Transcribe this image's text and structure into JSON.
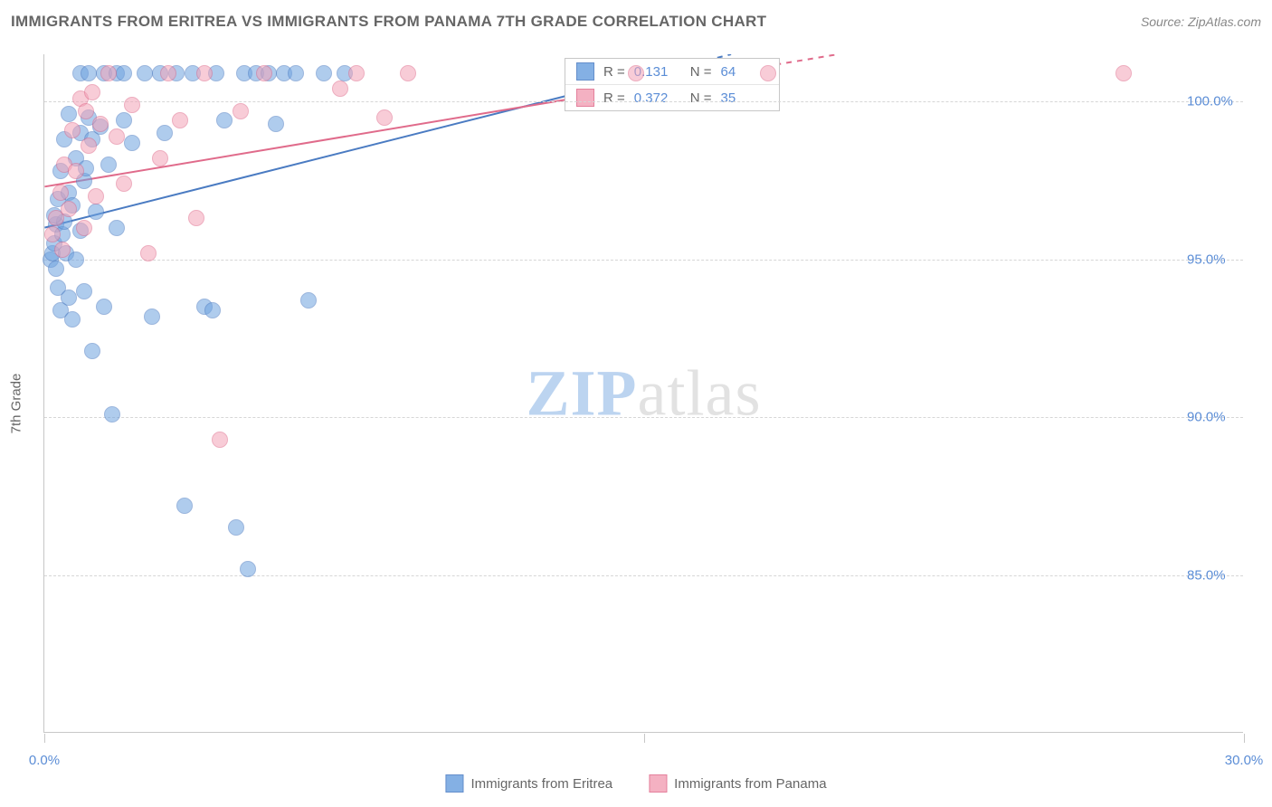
{
  "title": "IMMIGRANTS FROM ERITREA VS IMMIGRANTS FROM PANAMA 7TH GRADE CORRELATION CHART",
  "source": "Source: ZipAtlas.com",
  "watermark": {
    "bold": "ZIP",
    "light": "atlas"
  },
  "y_axis_label": "7th Grade",
  "chart": {
    "type": "scatter",
    "xlim": [
      0,
      30
    ],
    "ylim": [
      80,
      101.5
    ],
    "x_ticks": [
      0,
      15,
      30
    ],
    "x_tick_labels": [
      "0.0%",
      "",
      "30.0%"
    ],
    "y_ticks": [
      85,
      90,
      95,
      100
    ],
    "y_tick_labels": [
      "85.0%",
      "90.0%",
      "95.0%",
      "100.0%"
    ],
    "grid_color": "#d6d6d6",
    "axis_color": "#c7c7c7",
    "background_color": "#ffffff",
    "label_color": "#5b8dd6",
    "marker_radius": 9,
    "marker_opacity": 0.55,
    "series": [
      {
        "name": "Immigrants from Eritrea",
        "color": "#6fa3e0",
        "border": "#4a7bc2",
        "R": "0.131",
        "N": "64",
        "trend": {
          "x1": 0,
          "y1": 96.0,
          "x2": 15,
          "y2": 100.8,
          "dash_to_x": 25.5
        },
        "points": [
          [
            0.15,
            95.0
          ],
          [
            0.2,
            95.2
          ],
          [
            0.25,
            95.5
          ],
          [
            0.3,
            94.7
          ],
          [
            0.3,
            96.1
          ],
          [
            0.35,
            96.9
          ],
          [
            0.4,
            93.4
          ],
          [
            0.4,
            97.8
          ],
          [
            0.45,
            95.8
          ],
          [
            0.5,
            96.2
          ],
          [
            0.5,
            98.8
          ],
          [
            0.55,
            95.2
          ],
          [
            0.6,
            97.1
          ],
          [
            0.6,
            99.6
          ],
          [
            0.7,
            93.1
          ],
          [
            0.7,
            96.7
          ],
          [
            0.8,
            95.0
          ],
          [
            0.8,
            98.2
          ],
          [
            0.9,
            99.0
          ],
          [
            0.9,
            100.9
          ],
          [
            1.0,
            94.0
          ],
          [
            1.0,
            97.5
          ],
          [
            1.1,
            99.5
          ],
          [
            1.1,
            100.9
          ],
          [
            1.2,
            92.1
          ],
          [
            1.2,
            98.8
          ],
          [
            1.3,
            96.5
          ],
          [
            1.4,
            99.2
          ],
          [
            1.5,
            100.9
          ],
          [
            1.5,
            93.5
          ],
          [
            1.6,
            98.0
          ],
          [
            1.8,
            96.0
          ],
          [
            1.8,
            100.9
          ],
          [
            2.0,
            99.4
          ],
          [
            2.0,
            100.9
          ],
          [
            2.2,
            98.7
          ],
          [
            2.5,
            100.9
          ],
          [
            2.7,
            93.2
          ],
          [
            2.9,
            100.9
          ],
          [
            3.0,
            99.0
          ],
          [
            3.3,
            100.9
          ],
          [
            3.5,
            87.2
          ],
          [
            3.7,
            100.9
          ],
          [
            4.0,
            93.5
          ],
          [
            4.2,
            93.4
          ],
          [
            4.3,
            100.9
          ],
          [
            4.5,
            99.4
          ],
          [
            4.8,
            86.5
          ],
          [
            5.0,
            100.9
          ],
          [
            5.1,
            85.2
          ],
          [
            5.3,
            100.9
          ],
          [
            5.6,
            100.9
          ],
          [
            5.8,
            99.3
          ],
          [
            6.0,
            100.9
          ],
          [
            6.3,
            100.9
          ],
          [
            6.6,
            93.7
          ],
          [
            7.0,
            100.9
          ],
          [
            7.5,
            100.9
          ],
          [
            1.7,
            90.1
          ],
          [
            0.9,
            95.9
          ],
          [
            0.35,
            94.1
          ],
          [
            0.25,
            96.4
          ],
          [
            0.6,
            93.8
          ],
          [
            1.05,
            97.9
          ]
        ]
      },
      {
        "name": "Immigrants from Panama",
        "color": "#f3a4b8",
        "border": "#e06b8b",
        "R": "0.372",
        "N": "35",
        "trend": {
          "x1": 0,
          "y1": 97.3,
          "x2": 17.5,
          "y2": 101.0,
          "dash_to_x": 27.5
        },
        "points": [
          [
            0.2,
            95.8
          ],
          [
            0.3,
            96.3
          ],
          [
            0.4,
            97.1
          ],
          [
            0.45,
            95.3
          ],
          [
            0.5,
            98.0
          ],
          [
            0.6,
            96.6
          ],
          [
            0.7,
            99.1
          ],
          [
            0.8,
            97.8
          ],
          [
            0.9,
            100.1
          ],
          [
            1.0,
            96.0
          ],
          [
            1.1,
            98.6
          ],
          [
            1.2,
            100.3
          ],
          [
            1.3,
            97.0
          ],
          [
            1.4,
            99.3
          ],
          [
            1.6,
            100.9
          ],
          [
            1.8,
            98.9
          ],
          [
            2.0,
            97.4
          ],
          [
            2.2,
            99.9
          ],
          [
            2.6,
            95.2
          ],
          [
            2.9,
            98.2
          ],
          [
            3.1,
            100.9
          ],
          [
            3.4,
            99.4
          ],
          [
            3.8,
            96.3
          ],
          [
            4.0,
            100.9
          ],
          [
            4.4,
            89.3
          ],
          [
            4.9,
            99.7
          ],
          [
            5.5,
            100.9
          ],
          [
            7.4,
            100.4
          ],
          [
            7.8,
            100.9
          ],
          [
            8.5,
            99.5
          ],
          [
            9.1,
            100.9
          ],
          [
            14.8,
            100.9
          ],
          [
            18.1,
            100.9
          ],
          [
            27.0,
            100.9
          ],
          [
            1.05,
            99.7
          ]
        ]
      }
    ]
  },
  "r_legend": {
    "r_label": "R =",
    "n_label": "N ="
  },
  "bottom_legend": {
    "items": [
      "Immigrants from Eritrea",
      "Immigrants from Panama"
    ]
  }
}
